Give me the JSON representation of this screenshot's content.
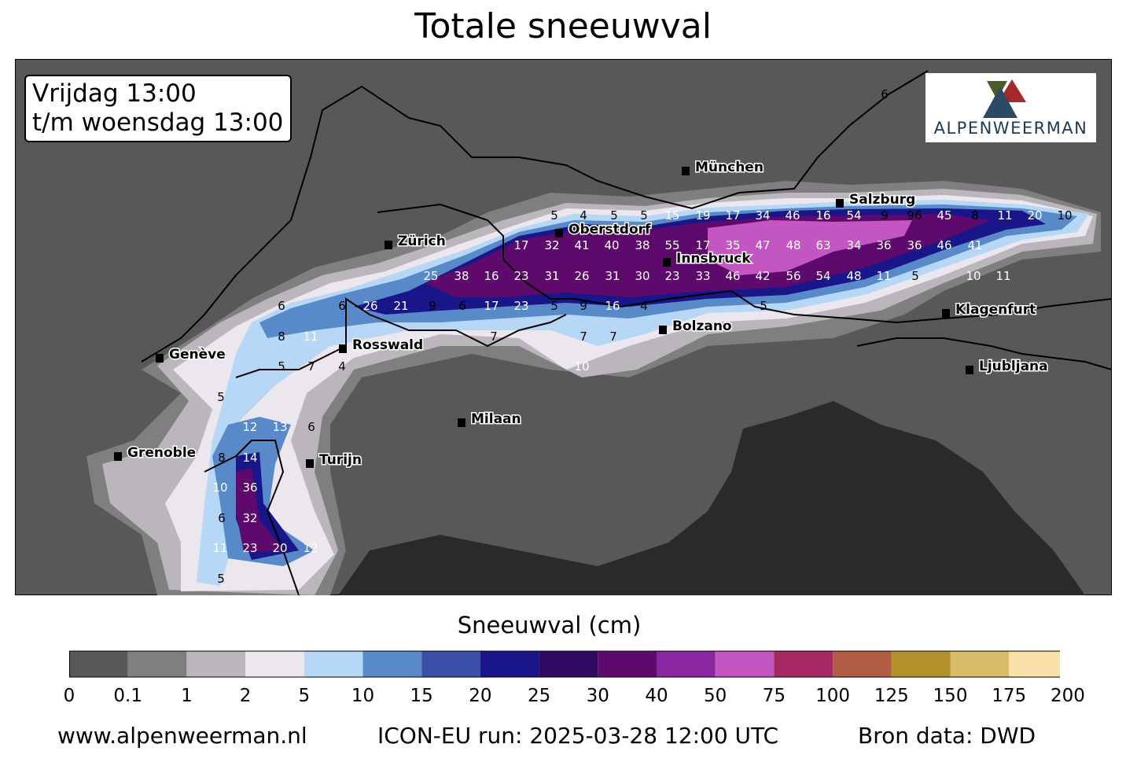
{
  "title": "Totale sneeuwval",
  "date_box": {
    "line1": "Vrijdag 13:00",
    "line2": "t/m woensdag 13:00"
  },
  "logo": {
    "text": "ALPENWEERMAN"
  },
  "cities": [
    "München",
    "Salzburg",
    "Zürich",
    "Oberstdorf",
    "Innsbruck",
    "Klagenfurt",
    "Bolzano",
    "Rosswald",
    "Genève",
    "Ljubljana",
    "Milaan",
    "Grenoble",
    "Turijn"
  ],
  "snow_values": [
    "5",
    "4",
    "5",
    "5",
    "15",
    "19",
    "17",
    "34",
    "46",
    "16",
    "54",
    "9",
    "96",
    "45",
    "8",
    "11",
    "20",
    "10",
    "6",
    "17",
    "32",
    "41",
    "40",
    "38",
    "55",
    "17",
    "35",
    "47",
    "48",
    "63",
    "34",
    "36",
    "36",
    "46",
    "41",
    "25",
    "38",
    "16",
    "23",
    "31",
    "26",
    "31",
    "30",
    "23",
    "33",
    "46",
    "42",
    "56",
    "54",
    "48",
    "11",
    "5",
    "10",
    "11",
    "6",
    "6",
    "26",
    "21",
    "9",
    "6",
    "17",
    "23",
    "5",
    "9",
    "16",
    "4",
    "5",
    "8",
    "11",
    "7",
    "7",
    "7",
    "5",
    "7",
    "4",
    "10",
    "5",
    "12",
    "13",
    "6",
    "8",
    "14",
    "10",
    "36",
    "6",
    "32",
    "11",
    "23",
    "20",
    "12",
    "5"
  ],
  "colorbar": {
    "title": "Sneeuwval (cm)",
    "ticks": [
      "0",
      "0.1",
      "1",
      "2",
      "5",
      "10",
      "15",
      "20",
      "25",
      "30",
      "40",
      "50",
      "75",
      "100",
      "125",
      "150",
      "175",
      "200"
    ],
    "colors": [
      "#585858",
      "#7f7f7f",
      "#bab6bc",
      "#ece7ef",
      "#b6d8f6",
      "#5889c8",
      "#3a4ea8",
      "#19168a",
      "#2f0b62",
      "#5d0a6c",
      "#8a27a0",
      "#c456c1",
      "#a52962",
      "#b25c45",
      "#b2912a",
      "#d9bb6a",
      "#f9e0a6"
    ],
    "extend_color": "#ffffff"
  },
  "footer": {
    "site": "www.alpenweerman.nl",
    "run": "ICON-EU run: 2025-03-28 12:00 UTC",
    "source": "Bron data: DWD"
  }
}
